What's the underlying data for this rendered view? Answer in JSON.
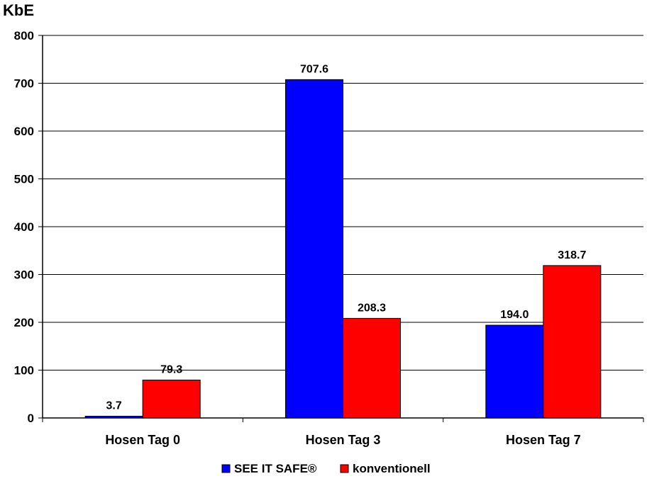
{
  "chart_data": {
    "type": "bar",
    "title": "",
    "xlabel": "",
    "ylabel": "KbE",
    "ylim": [
      0,
      800
    ],
    "yticks": [
      0,
      100,
      200,
      300,
      400,
      500,
      600,
      700,
      800
    ],
    "ytick_labels": [
      "0",
      "100",
      "200",
      "300",
      "400",
      "500",
      "600",
      "700",
      "800"
    ],
    "grid": true,
    "legend_position": "bottom",
    "categories": [
      "Hosen Tag 0",
      "Hosen Tag 3",
      "Hosen Tag 7"
    ],
    "series": [
      {
        "name": "SEE IT SAFE®",
        "color": "#0000FF",
        "values": [
          3.7,
          707.6,
          194.0
        ],
        "labels": [
          "3.7",
          "707.6",
          "194.0"
        ]
      },
      {
        "name": "konventionell",
        "color": "#FF0000",
        "values": [
          79.3,
          208.3,
          318.7
        ],
        "labels": [
          "79.3",
          "208.3",
          "318.7"
        ]
      }
    ]
  }
}
